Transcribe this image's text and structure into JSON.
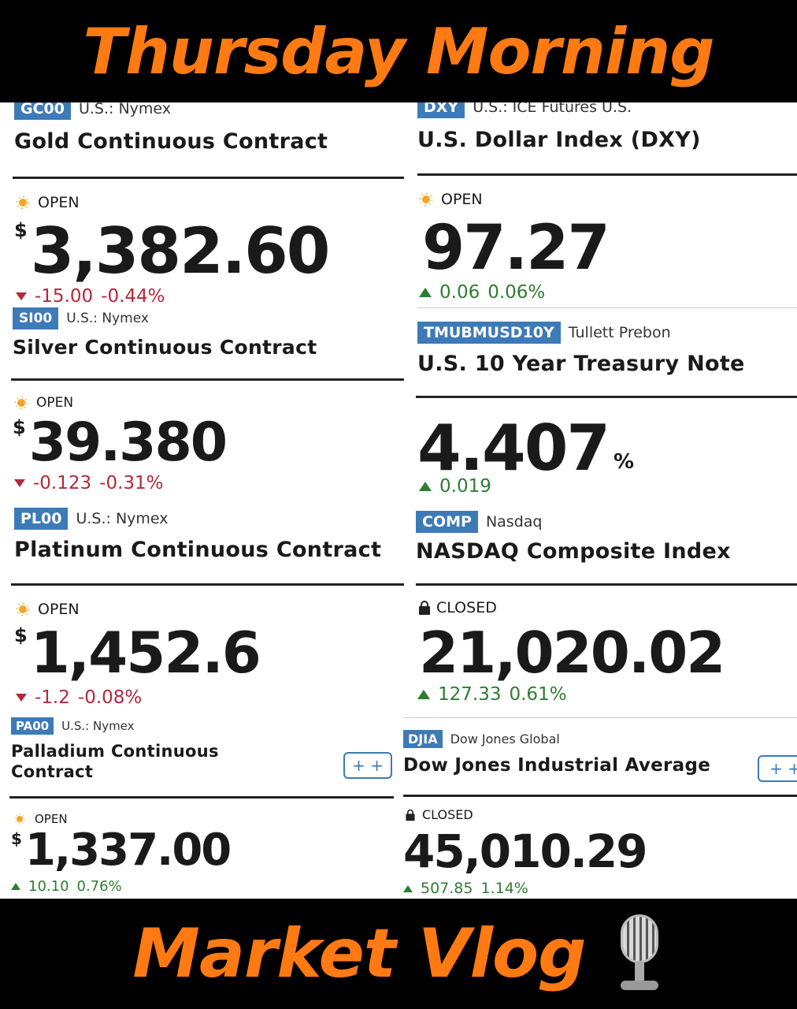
{
  "banners": {
    "top": "Thursday Morning",
    "bottom": "Market Vlog",
    "mic_icon": "microphone-icon"
  },
  "left": [
    {
      "ticker": "GC00",
      "exchange": "U.S.: Nymex",
      "name": "Gold Continuous Contract",
      "status": "OPEN",
      "currency": "$",
      "price": "3,382.60",
      "change": "-15.00",
      "change_pct": "-0.44%",
      "direction": "down"
    },
    {
      "ticker": "SI00",
      "exchange": "U.S.: Nymex",
      "name": "Silver Continuous Contract",
      "status": "OPEN",
      "currency": "$",
      "price": "39.380",
      "change": "-0.123",
      "change_pct": "-0.31%",
      "direction": "down"
    },
    {
      "ticker": "PL00",
      "exchange": "U.S.: Nymex",
      "name": "Platinum Continuous Contract",
      "status": "OPEN",
      "currency": "$",
      "price": "1,452.6",
      "change": "-1.2",
      "change_pct": "-0.08%",
      "direction": "down"
    },
    {
      "ticker": "PA00",
      "exchange": "U.S.: Nymex",
      "name_line1": "Palladium Continuous",
      "name_line2": "Contract",
      "status": "OPEN",
      "currency": "$",
      "price": "1,337.00",
      "change": "10.10",
      "change_pct": "0.76%",
      "direction": "up",
      "plus_label": "+ +"
    }
  ],
  "right": [
    {
      "ticker": "DXY",
      "exchange": "U.S.: ICE Futures U.S.",
      "name": "U.S. Dollar Index (DXY)",
      "status": "OPEN",
      "price": "97.27",
      "change": "0.06",
      "change_pct": "0.06%",
      "direction": "up"
    },
    {
      "ticker": "TMUBMUSD10Y",
      "exchange": "Tullett Prebon",
      "name": "U.S. 10 Year Treasury Note",
      "price": "4.407",
      "suffix": "%",
      "change": "0.019",
      "direction": "up"
    },
    {
      "ticker": "COMP",
      "exchange": "Nasdaq",
      "name": "NASDAQ Composite Index",
      "status": "CLOSED",
      "price": "21,020.02",
      "change": "127.33",
      "change_pct": "0.61%",
      "direction": "up"
    },
    {
      "ticker": "DJIA",
      "exchange": "Dow Jones Global",
      "name": "Dow Jones Industrial Average",
      "status": "CLOSED",
      "price": "45,010.29",
      "change": "507.85",
      "change_pct": "1.14%",
      "direction": "up",
      "plus_label": "+ +"
    }
  ],
  "colors": {
    "accent_orange": "#ff7a12",
    "badge_blue": "#3d7ab8",
    "down_red": "#b5283a",
    "up_green": "#2e7d32"
  }
}
